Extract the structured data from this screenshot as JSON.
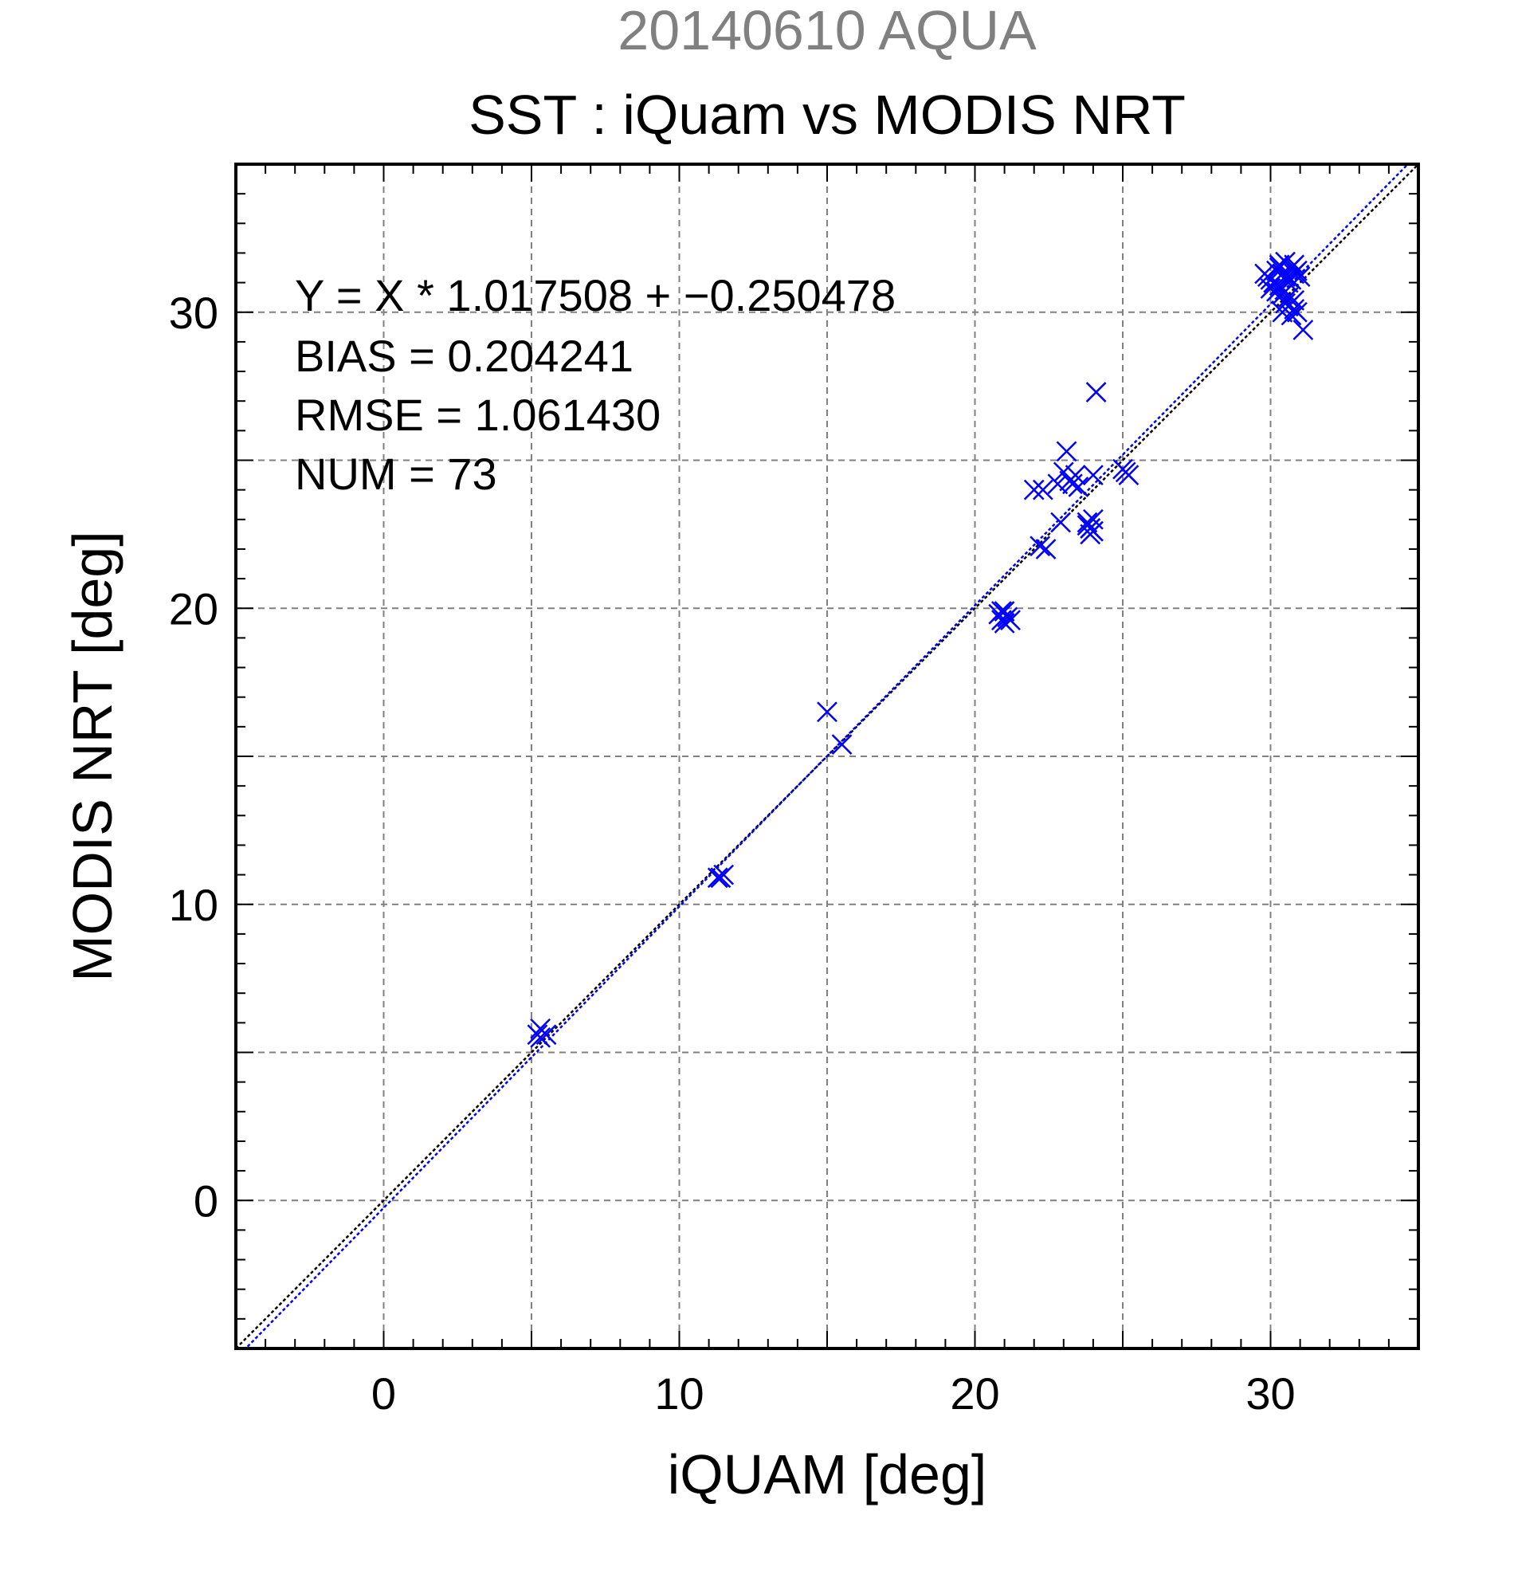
{
  "chart_data": {
    "type": "scatter",
    "supertitle": "20140610 AQUA",
    "title": "SST : iQuam vs MODIS NRT",
    "xlabel": "iQUAM [deg]",
    "ylabel": "MODIS NRT [deg]",
    "xlim": [
      -5,
      35
    ],
    "ylim": [
      -5,
      35
    ],
    "xticks": [
      0,
      10,
      20,
      30
    ],
    "yticks": [
      0,
      10,
      20,
      30
    ],
    "grid": true,
    "stats": [
      "Y = X * 1.017508 + −0.250478",
      "BIAS = 0.204241",
      "RMSE = 1.061430",
      "NUM = 73"
    ],
    "colors": {
      "points": "#0000ff",
      "fit_line": "#0000ff",
      "identity_line": "#000000",
      "supertitle": "#808080"
    },
    "fit": {
      "slope": 1.017508,
      "intercept": -0.250478
    },
    "series": [
      {
        "marker": "x",
        "x": [
          5.2,
          5.3,
          5.5,
          5.3,
          11.3,
          11.5,
          11.4,
          15.0,
          15.5,
          20.8,
          20.9,
          21.0,
          21.1,
          21.2,
          20.9,
          21.0,
          22.0,
          22.3,
          22.2,
          22.4,
          22.8,
          22.9,
          23.0,
          23.1,
          23.2,
          23.3,
          23.4,
          23.5,
          23.8,
          23.9,
          24.0,
          24.0,
          23.9,
          24.0,
          24.1,
          23.8,
          23.9,
          24.0,
          25.0,
          25.2,
          25.1,
          29.8,
          29.9,
          30.0,
          30.1,
          30.2,
          30.3,
          30.4,
          30.5,
          30.6,
          30.7,
          30.8,
          30.0,
          30.2,
          30.4,
          30.6,
          30.8,
          30.3,
          30.5,
          30.7,
          30.9,
          31.0,
          30.4,
          30.6,
          30.8,
          31.1,
          30.5,
          30.7,
          30.9,
          30.3,
          30.1,
          30.6,
          30.8
        ],
        "y": [
          5.6,
          5.8,
          5.6,
          5.5,
          10.9,
          11.0,
          10.9,
          16.5,
          15.4,
          19.8,
          19.6,
          19.9,
          19.7,
          19.6,
          19.9,
          19.5,
          24.0,
          24.0,
          22.1,
          22.0,
          24.2,
          22.9,
          24.6,
          25.3,
          24.3,
          24.2,
          24.5,
          24.1,
          22.9,
          22.5,
          23.0,
          24.5,
          22.7,
          22.6,
          27.3,
          22.8,
          22.7,
          22.6,
          24.7,
          24.5,
          24.6,
          31.3,
          31.2,
          31.1,
          31.0,
          31.4,
          31.5,
          31.3,
          31.2,
          31.0,
          31.1,
          31.3,
          30.8,
          30.7,
          30.6,
          30.5,
          30.4,
          31.6,
          31.7,
          31.5,
          31.4,
          31.2,
          30.0,
          30.2,
          30.1,
          29.4,
          30.3,
          29.9,
          30.0,
          30.9,
          31.0,
          31.2,
          31.6
        ]
      }
    ]
  }
}
